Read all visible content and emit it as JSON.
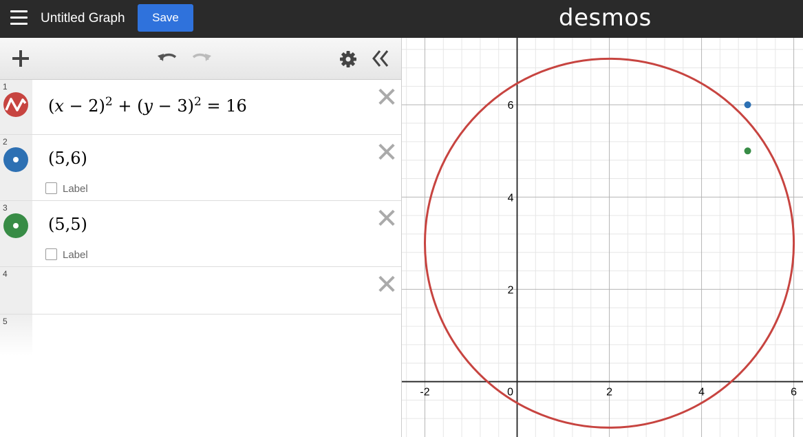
{
  "header": {
    "title": "Untitled Graph",
    "save_label": "Save",
    "logo": "desmos"
  },
  "toolbar": {
    "icons": [
      "add-icon",
      "undo-icon",
      "redo-icon",
      "gear-icon",
      "collapse-icon"
    ]
  },
  "expressions": [
    {
      "num": "1",
      "latex_parts": [
        "(",
        "x",
        " − 2)",
        "2",
        " + (",
        "y",
        " − 3)",
        "2",
        " = 16"
      ],
      "color": "#c74440",
      "type": "curve"
    },
    {
      "num": "2",
      "text": "(5,6)",
      "color": "#2d70b3",
      "type": "point",
      "label": "Label"
    },
    {
      "num": "3",
      "text": "(5,5)",
      "color": "#388c46",
      "type": "point",
      "label": "Label"
    },
    {
      "num": "4"
    },
    {
      "num": "5"
    }
  ],
  "graph": {
    "x_ticks": [
      "-2",
      "0",
      "2",
      "4",
      "6"
    ],
    "y_ticks": [
      "2",
      "4",
      "6"
    ],
    "xlim": [
      -2.5,
      6.2
    ],
    "ylim": [
      -1.2,
      7.45
    ],
    "circle": {
      "cx": 2,
      "cy": 3,
      "r": 4,
      "color": "#c74440"
    },
    "points": [
      {
        "x": 5,
        "y": 6,
        "color": "#2d70b3"
      },
      {
        "x": 5,
        "y": 5,
        "color": "#388c46"
      }
    ]
  }
}
